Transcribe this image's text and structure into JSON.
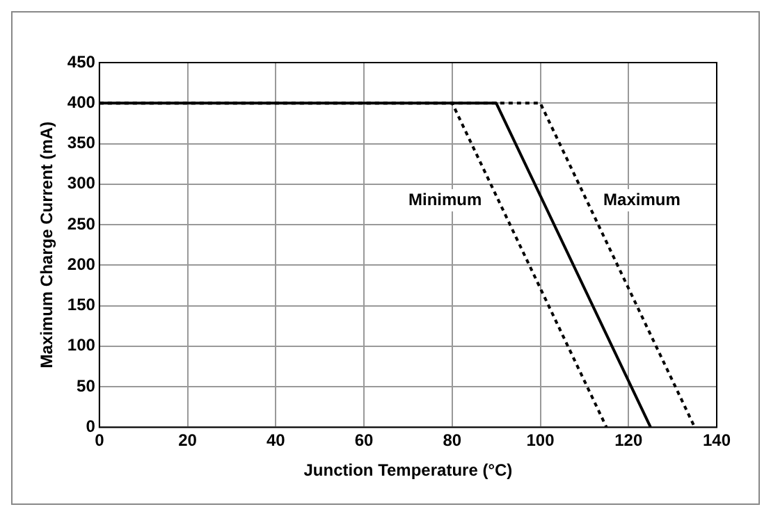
{
  "chart_data": {
    "type": "line",
    "xlabel": "Junction Temperature (°C)",
    "ylabel": "Maximum Charge Current (mA)",
    "xlim": [
      0,
      140
    ],
    "xticks": [
      0,
      20,
      40,
      60,
      80,
      100,
      120,
      140
    ],
    "ylim": [
      0,
      450
    ],
    "yticks": [
      0,
      50,
      100,
      150,
      200,
      250,
      300,
      350,
      400,
      450
    ],
    "grid": true,
    "marker": "none",
    "series": [
      {
        "x": [
          0,
          90,
          125
        ],
        "values": [
          400,
          400,
          0
        ],
        "color": "#000000",
        "line_style": "solid"
      },
      {
        "name": "Minimum",
        "x": [
          0,
          80,
          115
        ],
        "values": [
          400,
          400,
          0
        ],
        "color": "#000000",
        "line_style": "dotted"
      },
      {
        "name": "Maximum",
        "x": [
          0,
          100,
          135
        ],
        "values": [
          400,
          400,
          0
        ],
        "color": "#000000",
        "line_style": "dotted"
      }
    ]
  }
}
